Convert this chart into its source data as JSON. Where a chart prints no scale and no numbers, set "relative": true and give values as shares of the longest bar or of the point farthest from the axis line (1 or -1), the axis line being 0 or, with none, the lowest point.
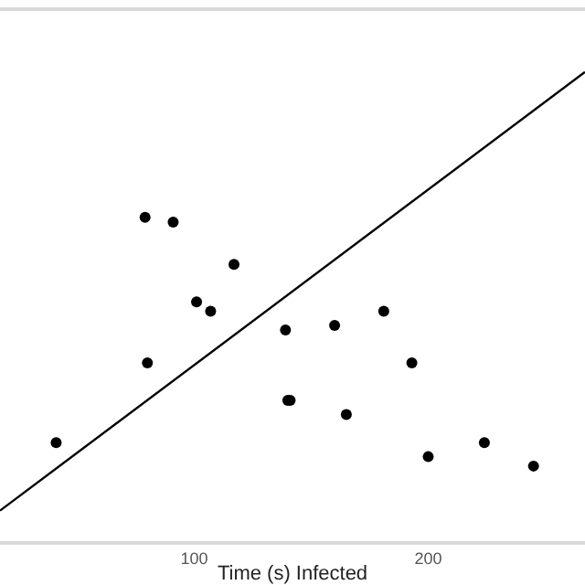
{
  "chart_data": {
    "type": "scatter",
    "xlabel": "Time (s) Infected",
    "relative": true,
    "xlim": [
      17,
      267
    ],
    "xticks": [
      100,
      200
    ],
    "grid": false,
    "marker": "circle",
    "series": [
      {
        "color": "#000000",
        "x": [
          41,
          79,
          91,
          117,
          80,
          101,
          107,
          139,
          160,
          181,
          193,
          140,
          141,
          165,
          200,
          224,
          245
        ],
        "values": [
          0.21,
          0.69,
          0.68,
          0.59,
          0.38,
          0.51,
          0.49,
          0.45,
          0.46,
          0.49,
          0.38,
          0.3,
          0.3,
          0.27,
          0.18,
          0.21,
          0.16
        ]
      },
      {
        "type": "line",
        "color": "#000000",
        "marker": "none",
        "line_style": "solid",
        "x": [
          17,
          267
        ],
        "values": [
          0.065,
          1
        ]
      }
    ]
  }
}
